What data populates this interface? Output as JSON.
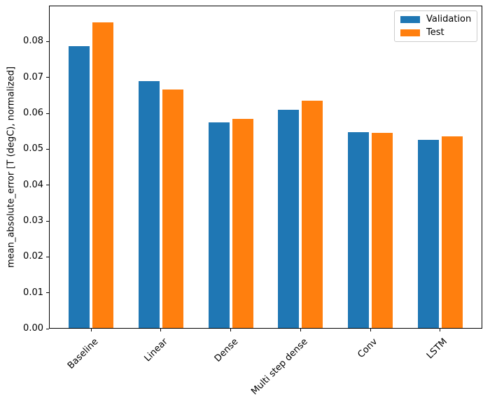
{
  "chart_data": {
    "type": "bar",
    "title": "",
    "categories": [
      "Baseline",
      "Linear",
      "Dense",
      "Multi step dense",
      "Conv",
      "LSTM"
    ],
    "series": [
      {
        "name": "Validation",
        "color": "#1f77b4",
        "values": [
          0.0785,
          0.0687,
          0.0572,
          0.0607,
          0.0545,
          0.0524
        ]
      },
      {
        "name": "Test",
        "color": "#ff7f0e",
        "values": [
          0.0852,
          0.0665,
          0.0583,
          0.0634,
          0.0543,
          0.0534
        ]
      }
    ],
    "xlabel": "",
    "ylabel": "mean_absolute_error [T (degC), normalized]",
    "ylim": [
      0,
      0.09
    ],
    "yticks": [
      0,
      0.01,
      0.02,
      0.03,
      0.04,
      0.05,
      0.06,
      0.07,
      0.08
    ],
    "ytick_labels": [
      "0.00",
      "0.01",
      "0.02",
      "0.03",
      "0.04",
      "0.05",
      "0.06",
      "0.07",
      "0.08"
    ],
    "grid": false,
    "legend_position": "upper right",
    "bar_width_data_units": 0.3,
    "bar_offset_data_units": 0.17,
    "xtick_rotation_deg": 45
  }
}
